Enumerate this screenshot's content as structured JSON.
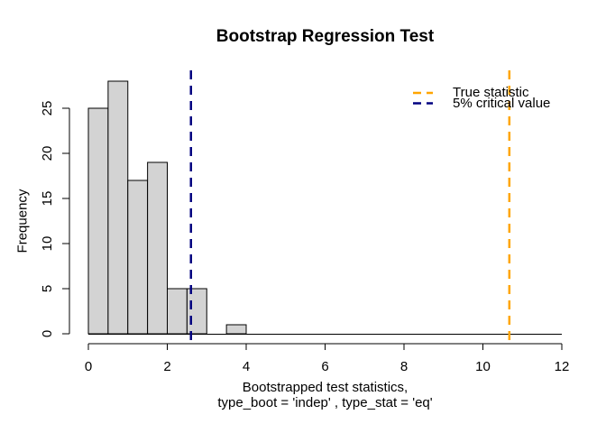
{
  "title": "Bootstrap Regression Test",
  "y_axis": {
    "label": "Frequency",
    "ticks": [
      0,
      5,
      10,
      15,
      20,
      25
    ]
  },
  "x_axis": {
    "label_line1": "Bootstrapped test statistics,",
    "label_line2": "type_boot = 'indep' , type_stat = 'eq'",
    "ticks": [
      0,
      2,
      4,
      6,
      8,
      10,
      12
    ]
  },
  "legend": [
    {
      "label": "True statistic",
      "color": "#FFA500",
      "line_style": "dashed"
    },
    {
      "label": "5% critical value",
      "color": "#000080",
      "line_style": "dashed"
    }
  ],
  "chart_data": {
    "type": "bar",
    "subtype": "histogram",
    "title": "Bootstrap Regression Test",
    "xlabel": "Bootstrapped test statistics, type_boot = 'indep' , type_stat = 'eq'",
    "ylabel": "Frequency",
    "xlim": [
      0,
      12
    ],
    "ylim": [
      0,
      28
    ],
    "x_ticks": [
      0,
      2,
      4,
      6,
      8,
      10,
      12
    ],
    "y_ticks": [
      0,
      5,
      10,
      15,
      20,
      25
    ],
    "bins": {
      "start": 0,
      "width": 0.5,
      "counts": [
        25,
        28,
        17,
        19,
        5,
        5,
        0,
        1
      ]
    },
    "n_total": 100,
    "bar_fill": "#D3D3D3",
    "bar_border": "#000000",
    "vlines": [
      {
        "label": "True statistic",
        "x": 10.67,
        "color": "#FFA500",
        "line_style": "dashed"
      },
      {
        "label": "5% critical value",
        "x": 2.6,
        "color": "#000080",
        "line_style": "dashed"
      }
    ],
    "legend_position": "topright",
    "grid": false
  }
}
